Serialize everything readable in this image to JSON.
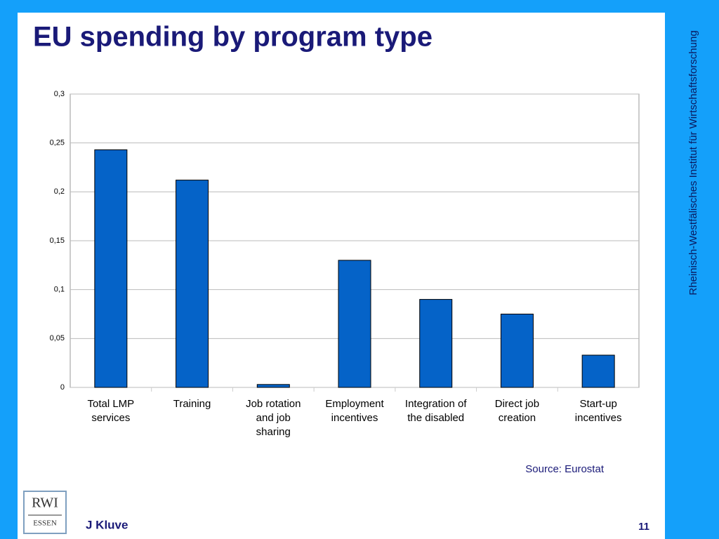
{
  "chart_data": {
    "type": "bar",
    "title": "EU spending by program type",
    "categories": [
      "Total LMP services",
      "Training",
      "Job rotation and job sharing",
      "Employment incentives",
      "Integration of the disabled",
      "Direct job creation",
      "Start-up incentives"
    ],
    "values": [
      0.243,
      0.212,
      0.003,
      0.13,
      0.09,
      0.075,
      0.033
    ],
    "color": "#0563c8",
    "ylim": [
      0,
      0.3
    ],
    "yticks": [
      0,
      {
        "value": 0.05,
        "label": "0,05"
      },
      {
        "value": 0.1,
        "label": "0,1"
      },
      {
        "value": 0.15,
        "label": "0,15"
      },
      {
        "value": 0.2,
        "label": "0,2"
      },
      {
        "value": 0.25,
        "label": "0,25"
      },
      {
        "value": 0.3,
        "label": "0,3"
      }
    ],
    "grid": true
  },
  "slide": {
    "side_text": "Rheinisch-Westfälisches Institut für Wirtschaftsforschung",
    "source": "Source: Eurostat",
    "author": "J Kluve",
    "page": "11",
    "logo": [
      "RWI",
      "ESSEN"
    ]
  }
}
